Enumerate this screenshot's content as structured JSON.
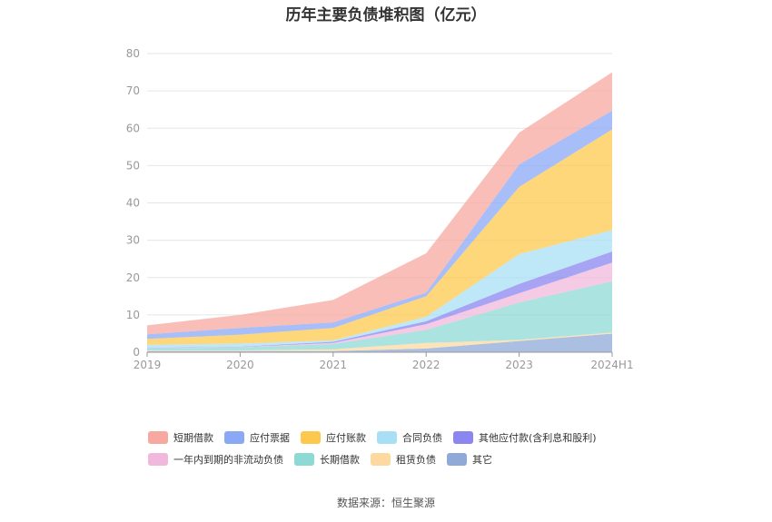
{
  "title": "历年主要负债堆积图（亿元）",
  "source": "数据来源：恒生聚源",
  "chart_data": {
    "type": "area",
    "stacked": true,
    "title": "历年主要负债堆积图（亿元）",
    "xlabel": "",
    "ylabel": "",
    "categories": [
      "2019",
      "2020",
      "2021",
      "2022",
      "2023",
      "2024H1"
    ],
    "ylim": [
      0,
      80
    ],
    "yticks": [
      0,
      10,
      20,
      30,
      40,
      50,
      60,
      70,
      80
    ],
    "grid": true,
    "legend_position": "bottom",
    "series": [
      {
        "name": "其它",
        "color": "#8fa9d8",
        "values": [
          0.3,
          0.3,
          0.3,
          1.0,
          3.0,
          5.0
        ]
      },
      {
        "name": "租赁负债",
        "color": "#fdd9a0",
        "values": [
          0.2,
          0.2,
          0.5,
          1.5,
          0.3,
          0.3
        ]
      },
      {
        "name": "长期借款",
        "color": "#8dd9d4",
        "values": [
          0.5,
          0.8,
          1.4,
          3.5,
          10.0,
          13.7
        ]
      },
      {
        "name": "一年内到期的非流动负债",
        "color": "#f0b8dc",
        "values": [
          0.1,
          0.1,
          0.3,
          1.5,
          2.5,
          5.0
        ]
      },
      {
        "name": "其他应付款(含利息和股利)",
        "color": "#8b86f0",
        "values": [
          0.1,
          0.1,
          0.3,
          0.8,
          2.5,
          3.0
        ]
      },
      {
        "name": "合同负债",
        "color": "#a8dff5",
        "values": [
          0.8,
          0.8,
          0.4,
          1.2,
          8.0,
          5.7
        ]
      },
      {
        "name": "应付账款",
        "color": "#fcc94e",
        "values": [
          1.6,
          2.4,
          3.3,
          5.5,
          18.0,
          27.0
        ]
      },
      {
        "name": "应付票据",
        "color": "#8ba8f7",
        "values": [
          1.2,
          1.8,
          1.5,
          1.0,
          6.0,
          5.0
        ]
      },
      {
        "name": "短期借款",
        "color": "#f7a8a0",
        "values": [
          2.4,
          3.5,
          6.0,
          10.5,
          8.5,
          10.3
        ]
      }
    ]
  },
  "legend": {
    "row1": [
      "短期借款",
      "应付票据",
      "应付账款",
      "合同负债",
      "其他应付款(含利息和股利)"
    ],
    "row2": [
      "一年内到期的非流动负债",
      "长期借款",
      "租赁负债",
      "其它"
    ]
  }
}
